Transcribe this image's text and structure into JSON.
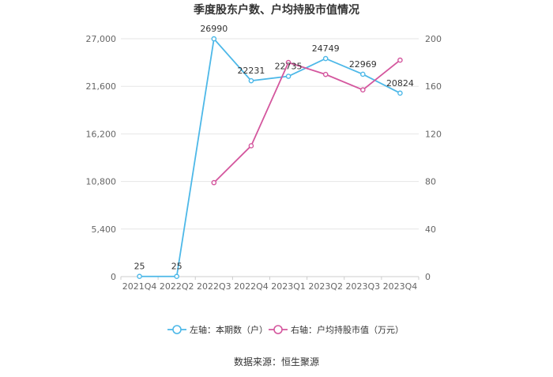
{
  "chart_data": {
    "type": "line",
    "title": "季度股东户数、户均持股市值情况",
    "categories": [
      "2021Q4",
      "2022Q2",
      "2022Q3",
      "2022Q4",
      "2023Q1",
      "2023Q2",
      "2023Q3",
      "2023Q4"
    ],
    "series": [
      {
        "name": "左轴：本期数（户）",
        "axis": "left",
        "color": "#4db8e8",
        "values": [
          25,
          25,
          26990,
          22231,
          22735,
          24749,
          22969,
          20824
        ],
        "data_labels": [
          "25",
          "25",
          "26990",
          "22231",
          "22735",
          "24749",
          "22969",
          "20824"
        ]
      },
      {
        "name": "右轴：户均持股市值（万元）",
        "axis": "right",
        "color": "#d4579e",
        "values": [
          null,
          null,
          79,
          110,
          180,
          170,
          157,
          182
        ]
      }
    ],
    "y_left": {
      "min": 0,
      "max": 27000,
      "ticks": [
        0,
        5400,
        10800,
        16200,
        21600,
        27000
      ],
      "tick_labels": [
        "0",
        "5,400",
        "10,800",
        "16,200",
        "21,600",
        "27,000"
      ]
    },
    "y_right": {
      "min": 0,
      "max": 200,
      "ticks": [
        0,
        40,
        80,
        120,
        160,
        200
      ],
      "tick_labels": [
        "0",
        "40",
        "80",
        "120",
        "160",
        "200"
      ]
    },
    "grid": true,
    "legend_position": "bottom"
  },
  "source": "数据来源：恒生聚源"
}
